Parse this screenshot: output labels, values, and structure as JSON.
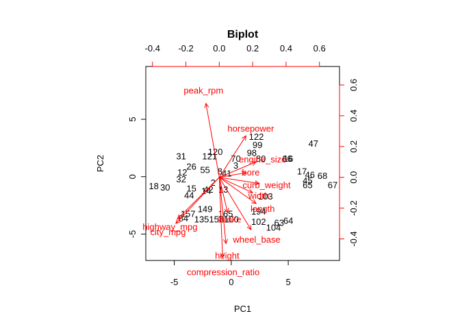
{
  "chart_data": {
    "type": "scatter",
    "title": "Biplot",
    "xlabel": "PC1",
    "ylabel": "PC2",
    "xlim": [
      -7.5,
      9.5
    ],
    "ylim": [
      -7.3,
      9.6
    ],
    "xticks": [
      -5,
      0,
      5
    ],
    "yticks": [
      -5,
      0,
      5
    ],
    "x2lim": [
      -0.44,
      0.72
    ],
    "y2lim": [
      -0.54,
      0.72
    ],
    "x2ticks": [
      -0.4,
      -0.2,
      0.0,
      0.2,
      0.4,
      0.6
    ],
    "x2ticklabels": [
      "-0.4",
      "-0.2",
      "0.0",
      "0.2",
      "0.4",
      "0.6"
    ],
    "y2ticks": [
      -0.4,
      -0.2,
      0.0,
      0.2,
      0.4,
      0.6
    ],
    "y2ticklabels": [
      "-0.4",
      "-0.2",
      "0.0",
      "0.2",
      "0.4",
      "0.6"
    ],
    "observations": [
      {
        "label": "47",
        "x": 7.2,
        "y": 2.9
      },
      {
        "label": "68",
        "x": 8.0,
        "y": 0.1
      },
      {
        "label": "67",
        "x": 8.9,
        "y": -0.7
      },
      {
        "label": "46",
        "x": 6.9,
        "y": 0.2
      },
      {
        "label": "17",
        "x": 6.2,
        "y": 0.5
      },
      {
        "label": "45",
        "x": 6.7,
        "y": -0.3
      },
      {
        "label": "65",
        "x": 6.7,
        "y": -0.7
      },
      {
        "label": "66",
        "x": 4.9,
        "y": 1.6
      },
      {
        "label": "16",
        "x": 5.0,
        "y": 1.6
      },
      {
        "label": "18",
        "x": -6.8,
        "y": -0.8
      },
      {
        "label": "30",
        "x": -5.8,
        "y": -0.9
      },
      {
        "label": "31",
        "x": -4.4,
        "y": 1.8
      },
      {
        "label": "32",
        "x": -4.4,
        "y": -0.2
      },
      {
        "label": "122",
        "x": 2.2,
        "y": 3.5
      },
      {
        "label": "99",
        "x": 2.3,
        "y": 2.8
      },
      {
        "label": "103",
        "x": 3.0,
        "y": -1.7
      },
      {
        "label": "194",
        "x": 2.4,
        "y": -3.0
      },
      {
        "label": "102",
        "x": 2.4,
        "y": -3.9
      },
      {
        "label": "104",
        "x": 3.7,
        "y": -4.4
      },
      {
        "label": "63",
        "x": 4.2,
        "y": -4.0
      },
      {
        "label": "64",
        "x": 5.0,
        "y": -3.8
      },
      {
        "label": "149",
        "x": -2.3,
        "y": -2.8
      },
      {
        "label": "44",
        "x": -3.7,
        "y": -1.6
      },
      {
        "label": "165",
        "x": -0.5,
        "y": -3.2
      },
      {
        "label": "100",
        "x": 0.0,
        "y": -3.7
      },
      {
        "label": "135",
        "x": -2.6,
        "y": -3.7
      },
      {
        "label": "158",
        "x": -1.3,
        "y": -3.7
      },
      {
        "label": "84",
        "x": -4.2,
        "y": -3.6
      },
      {
        "label": "157",
        "x": -3.8,
        "y": -3.2
      },
      {
        "label": "15",
        "x": -3.5,
        "y": -1.0
      },
      {
        "label": "14",
        "x": -2.2,
        "y": -1.2
      },
      {
        "label": "120",
        "x": -1.4,
        "y": 2.2
      },
      {
        "label": "121",
        "x": -1.9,
        "y": 1.8
      },
      {
        "label": "70",
        "x": 0.4,
        "y": 1.6
      },
      {
        "label": "98",
        "x": 1.8,
        "y": 2.1
      },
      {
        "label": "80",
        "x": 2.6,
        "y": 1.6
      },
      {
        "label": "3",
        "x": 0.4,
        "y": 1.0
      },
      {
        "label": "26",
        "x": -3.5,
        "y": 0.9
      },
      {
        "label": "12",
        "x": -4.3,
        "y": 0.4
      },
      {
        "label": "55",
        "x": -2.3,
        "y": 0.6
      },
      {
        "label": "42",
        "x": -2.0,
        "y": -1.1
      },
      {
        "label": "13",
        "x": -0.7,
        "y": -1.1
      },
      {
        "label": "41",
        "x": -0.4,
        "y": 0.3
      },
      {
        "label": "2",
        "x": -1.6,
        "y": -0.5
      },
      {
        "label": "8",
        "x": -1.0,
        "y": 0.5
      }
    ],
    "loadings": [
      {
        "name": "peak_rpm",
        "x": -0.08,
        "y": 0.48
      },
      {
        "name": "horsepower",
        "x": 0.16,
        "y": 0.27
      },
      {
        "name": "engine_size",
        "x": 0.22,
        "y": 0.1
      },
      {
        "name": "bore",
        "x": 0.16,
        "y": 0.03
      },
      {
        "name": "curb_weight",
        "x": 0.24,
        "y": -0.04
      },
      {
        "name": "width",
        "x": 0.2,
        "y": -0.1
      },
      {
        "name": "length",
        "x": 0.22,
        "y": -0.17
      },
      {
        "name": "wheel_base",
        "x": 0.19,
        "y": -0.34
      },
      {
        "name": "stroke",
        "x": 0.05,
        "y": -0.23
      },
      {
        "name": "height",
        "x": 0.04,
        "y": -0.43
      },
      {
        "name": "compression_ratio",
        "x": 0.02,
        "y": -0.52
      },
      {
        "name": "highway_mpg",
        "x": -0.25,
        "y": -0.27
      },
      {
        "name": "city_mpg",
        "x": -0.26,
        "y": -0.3
      }
    ],
    "loading_labels": [
      {
        "name": "peak_rpm",
        "text": "peak_rpm"
      },
      {
        "name": "horsepower",
        "text": "horsepower"
      },
      {
        "name": "engine_size",
        "text": "engine_size"
      },
      {
        "name": "bore",
        "text": "bore"
      },
      {
        "name": "curb_weight",
        "text": "curb_weight"
      },
      {
        "name": "width",
        "text": "width"
      },
      {
        "name": "length",
        "text": "length"
      },
      {
        "name": "wheel_base",
        "text": "wheel_base"
      },
      {
        "name": "stroke",
        "text": "stroke"
      },
      {
        "name": "height",
        "text": "height"
      },
      {
        "name": "compression_ratio",
        "text": "compression_ratio"
      },
      {
        "name": "highway_mpg",
        "text": "highway_mpg"
      },
      {
        "name": "city_mpg",
        "text": "city_mpg"
      }
    ],
    "colors": {
      "observations": "#000000",
      "loadings": "#ff0000"
    },
    "grid": false,
    "legend": "none"
  }
}
